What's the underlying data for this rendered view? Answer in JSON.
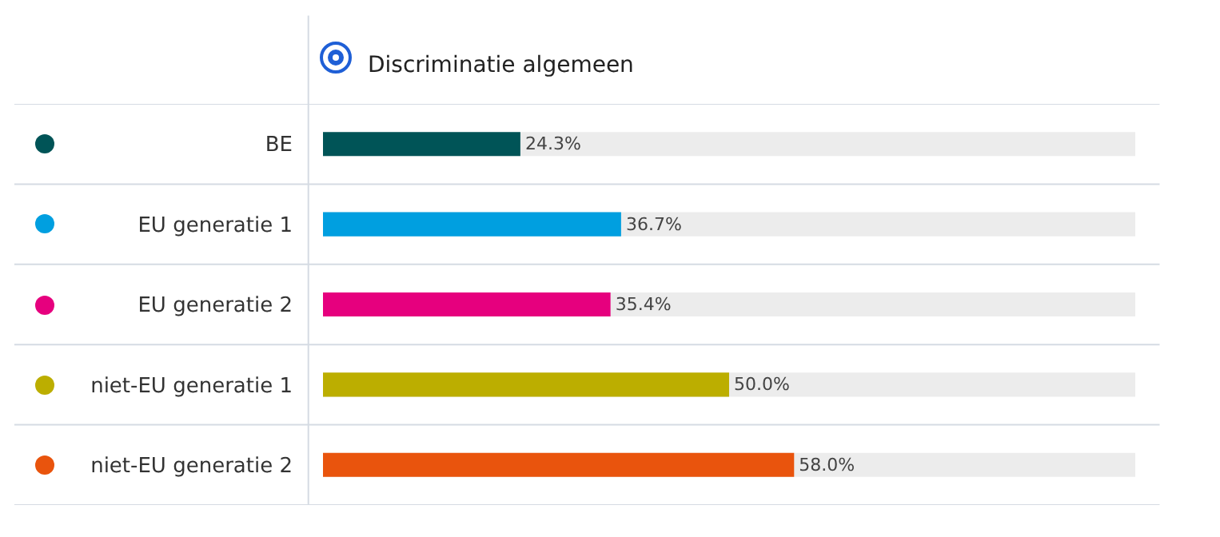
{
  "chart_data": {
    "type": "bar",
    "orientation": "horizontal",
    "title": "Discriminatie algemeen",
    "categories": [
      "BE",
      "EU generatie 1",
      "EU generatie 2",
      "niet-EU generatie 1",
      "niet-EU generatie 2"
    ],
    "values": [
      24.3,
      36.7,
      35.4,
      50.0,
      58.0
    ],
    "colors": [
      "#005457",
      "#009fe0",
      "#e6007e",
      "#bcae00",
      "#e9540d"
    ],
    "value_labels": [
      "24.3%",
      "36.7%",
      "35.4%",
      "50.0%",
      "58.0%"
    ],
    "xlim": [
      0,
      100
    ],
    "tick_labels": "y",
    "legend": false
  }
}
